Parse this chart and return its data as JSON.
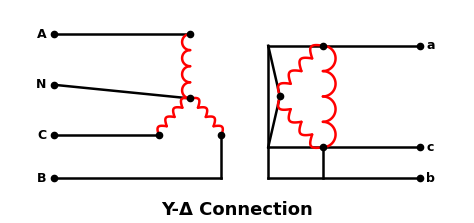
{
  "title": "Y-Δ Connection",
  "title_fontsize": 13,
  "title_fontweight": "bold",
  "bg_color": "#ffffff",
  "line_color": "#000000",
  "coil_color": "#ff0000",
  "dot_color": "#000000",
  "lw": 1.8,
  "dot_size": 4.5,
  "figsize": [
    4.74,
    2.23
  ],
  "dpi": 100,
  "xlim": [
    0,
    10
  ],
  "ylim": [
    -0.5,
    5.0
  ]
}
